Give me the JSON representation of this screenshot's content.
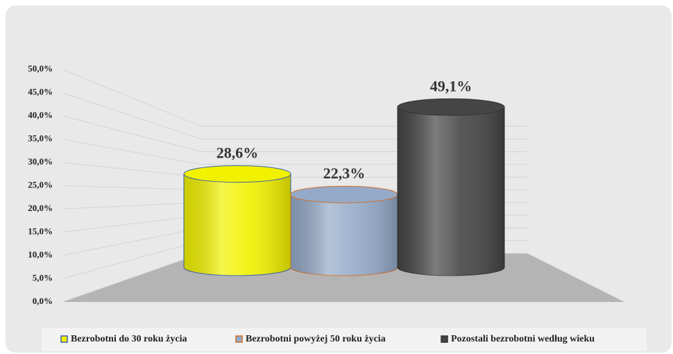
{
  "chart_data": {
    "type": "bar3d",
    "categories": [
      null
    ],
    "series": [
      {
        "name": "Bezrobotni do 30 roku życia",
        "color": "#f2f200",
        "edge": "#3a5fa8",
        "values": [
          28.6
        ],
        "value_labels": [
          "28,6%"
        ]
      },
      {
        "name": "Bezrobotni powyżej 50 roku życia",
        "color": "#94aac8",
        "edge": "#d0702a",
        "values": [
          22.3
        ],
        "value_labels": [
          "22,3%"
        ]
      },
      {
        "name": "Pozostali bezrobotni według wieku",
        "color": "#454545",
        "edge": "#333333",
        "values": [
          49.1
        ],
        "value_labels": [
          "49,1%"
        ]
      }
    ],
    "ylim": [
      0,
      50
    ],
    "yticks": [
      {
        "value": 0,
        "label": "0,0%"
      },
      {
        "value": 5,
        "label": "5,0%"
      },
      {
        "value": 10,
        "label": "10,0%"
      },
      {
        "value": 15,
        "label": "15,0%"
      },
      {
        "value": 20,
        "label": "20,0%"
      },
      {
        "value": 25,
        "label": "25,0%"
      },
      {
        "value": 30,
        "label": "30,0%"
      },
      {
        "value": 35,
        "label": "35,0%"
      },
      {
        "value": 40,
        "label": "40,0%"
      },
      {
        "value": 45,
        "label": "45,0%"
      },
      {
        "value": 50,
        "label": "50,0%"
      }
    ],
    "grid": true,
    "legend": "bottom"
  }
}
